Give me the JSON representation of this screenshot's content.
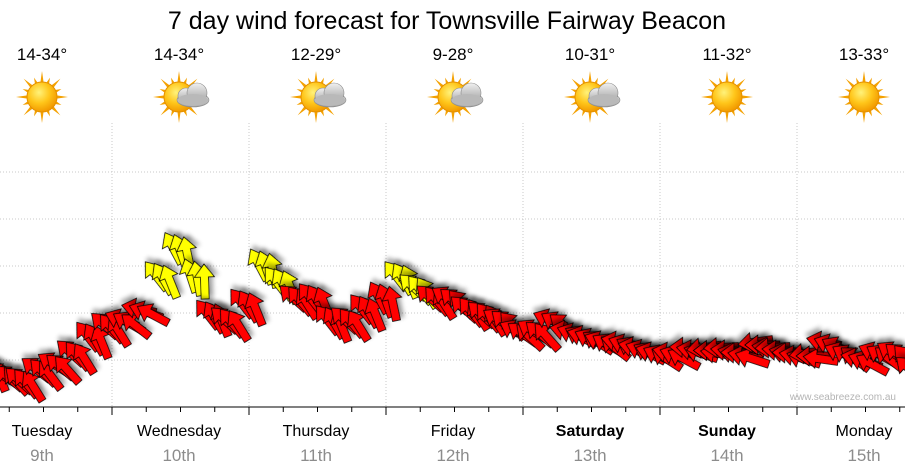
{
  "chart_data": {
    "type": "line",
    "title": "7 day wind forecast for Townsville Fairway Beacon",
    "days": [
      {
        "day": "Tuesday",
        "date": "9th",
        "temp": "14-34°",
        "icon": "sun-icon",
        "weekend": false
      },
      {
        "day": "Wednesday",
        "date": "10th",
        "temp": "14-34°",
        "icon": "sun-cloud-icon",
        "weekend": false
      },
      {
        "day": "Thursday",
        "date": "11th",
        "temp": "12-29°",
        "icon": "sun-cloud-icon",
        "weekend": false
      },
      {
        "day": "Friday",
        "date": "12th",
        "temp": "9-28°",
        "icon": "sun-cloud-icon",
        "weekend": false
      },
      {
        "day": "Saturday",
        "date": "13th",
        "temp": "10-31°",
        "icon": "sun-cloud-icon",
        "weekend": true
      },
      {
        "day": "Sunday",
        "date": "14th",
        "temp": "11-32°",
        "icon": "sun-icon",
        "weekend": true
      },
      {
        "day": "Monday",
        "date": "15th",
        "temp": "13-33°",
        "icon": "sun-icon",
        "weekend": false
      }
    ],
    "x_unit": "hours from start",
    "ylim": [
      0,
      40
    ],
    "grid": true,
    "colors": {
      "light": "#ff0000",
      "moderate": "#ffff00",
      "outline": "#000000"
    },
    "series": [
      {
        "x": [
          0,
          3,
          6,
          9,
          12,
          15,
          18,
          21,
          24,
          27,
          30,
          33,
          36,
          39,
          42,
          45,
          48,
          51,
          54,
          57,
          60,
          63,
          66,
          69,
          72,
          75,
          78,
          81,
          84,
          87,
          90,
          93,
          96,
          99,
          102,
          105,
          108,
          111,
          114,
          117,
          120,
          123,
          126,
          129,
          132,
          135,
          138,
          141,
          144,
          147,
          150,
          153,
          156,
          159,
          162,
          165,
          168
        ],
        "speed": [
          8,
          5,
          4,
          3,
          5,
          6,
          8,
          11,
          13,
          14,
          16,
          22,
          27,
          22,
          15,
          14,
          17,
          24,
          21,
          18,
          18,
          14,
          14,
          16,
          18,
          22,
          20,
          18,
          18,
          16,
          15,
          14,
          12,
          12,
          14,
          12,
          11,
          10,
          10,
          9,
          8,
          8,
          9,
          9,
          9,
          8,
          10,
          9,
          8,
          8,
          10,
          8,
          7,
          8,
          8,
          5,
          3
        ],
        "direction_deg": [
          135,
          150,
          130,
          140,
          135,
          130,
          140,
          150,
          140,
          120,
          110,
          150,
          160,
          170,
          150,
          140,
          150,
          160,
          150,
          140,
          150,
          150,
          140,
          150,
          160,
          150,
          140,
          140,
          130,
          140,
          140,
          130,
          125,
          130,
          120,
          110,
          115,
          120,
          110,
          110,
          115,
          110,
          100,
          90,
          95,
          100,
          90,
          95,
          100,
          90,
          110,
          120,
          110,
          120,
          130,
          140,
          140
        ]
      }
    ],
    "watermark": "www.seabreeze.com.au"
  }
}
